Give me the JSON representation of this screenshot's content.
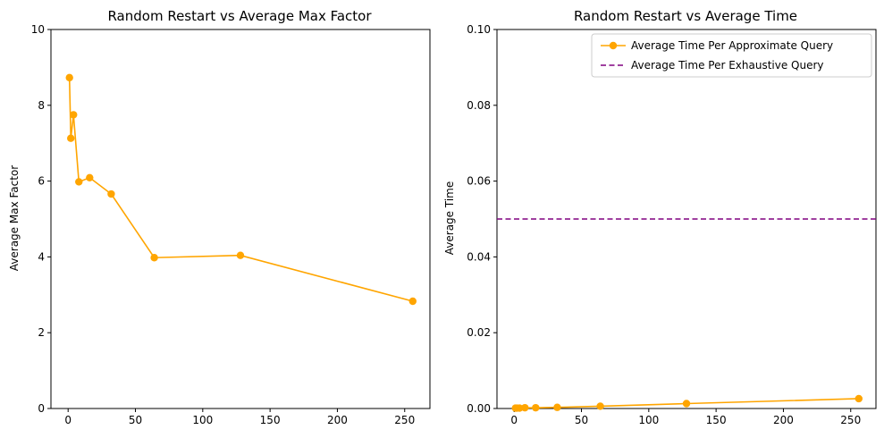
{
  "chart_data": [
    {
      "type": "line",
      "title": "Random Restart vs Average Max Factor",
      "xlabel": "",
      "ylabel": "Average Max Factor",
      "xlim": [
        -12.75,
        268.75
      ],
      "ylim": [
        0,
        10
      ],
      "xticks": [
        0,
        50,
        100,
        150,
        200,
        250
      ],
      "yticks": [
        0,
        2,
        4,
        6,
        8,
        10
      ],
      "grid": false,
      "legend": "none",
      "series": [
        {
          "color": "#FFA500",
          "marker": "circle",
          "x": [
            1,
            2,
            4,
            8,
            16,
            32,
            64,
            128,
            256
          ],
          "y": [
            8.73,
            7.13,
            7.75,
            5.98,
            6.09,
            5.66,
            3.98,
            4.04,
            2.83
          ]
        }
      ]
    },
    {
      "type": "line",
      "title": "Random Restart vs Average Time",
      "xlabel": "",
      "ylabel": "Average Time",
      "xlim": [
        -12.75,
        268.75
      ],
      "ylim": [
        0,
        0.1
      ],
      "xticks": [
        0,
        50,
        100,
        150,
        200,
        250
      ],
      "yticks": [
        0.0,
        0.02,
        0.04,
        0.06,
        0.08,
        0.1
      ],
      "ytick_labels": [
        "0.00",
        "0.02",
        "0.04",
        "0.06",
        "0.08",
        "0.10"
      ],
      "grid": false,
      "legend": "top-right",
      "series": [
        {
          "name": "Average Time Per Approximate Query",
          "color": "#FFA500",
          "marker": "circle",
          "x": [
            1,
            2,
            4,
            8,
            16,
            32,
            64,
            128,
            256
          ],
          "y": [
            0.0001,
            0.0001,
            0.0001,
            0.0002,
            0.0002,
            0.0003,
            0.0006,
            0.0013,
            0.0026
          ]
        }
      ],
      "hlines": [
        {
          "name": "Average Time Per Exhaustive Query",
          "y": 0.05,
          "color": "#800080",
          "style": "dashed"
        }
      ]
    }
  ]
}
